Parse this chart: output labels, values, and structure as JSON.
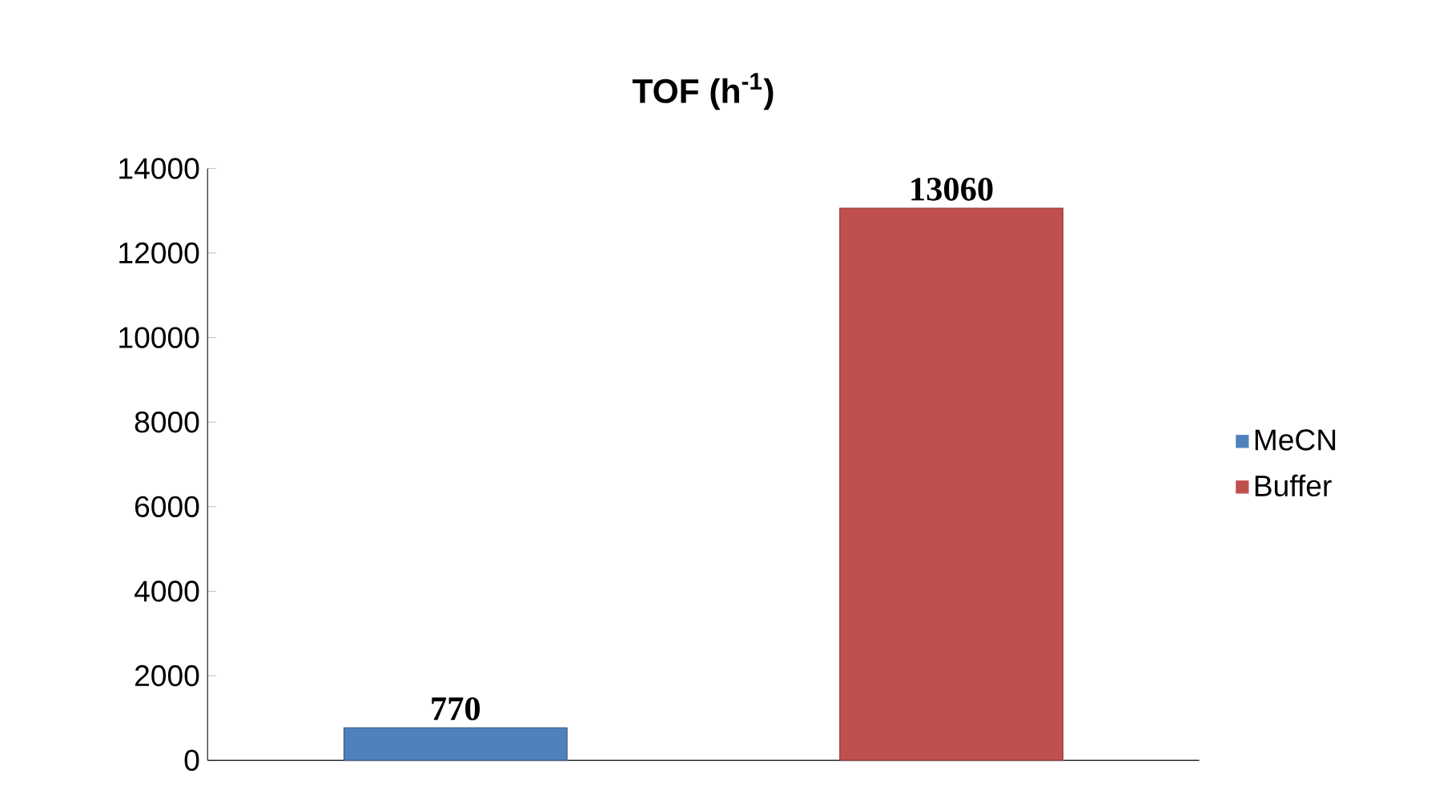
{
  "chart_data": {
    "type": "bar",
    "title": "TOF (h$^{-1}$)",
    "categories": [
      null,
      null
    ],
    "series": [
      {
        "name": "MeCN",
        "color": "#4f81bd",
        "values": [
          770,
          null
        ]
      },
      {
        "name": "Buffer",
        "color": "#c0504d",
        "values": [
          null,
          13060
        ]
      }
    ],
    "ylim": [
      0,
      14000
    ],
    "yticks": [
      0,
      2000,
      4000,
      6000,
      8000,
      10000,
      12000,
      14000
    ],
    "data_labels": true,
    "legend": "right",
    "grid": false
  }
}
